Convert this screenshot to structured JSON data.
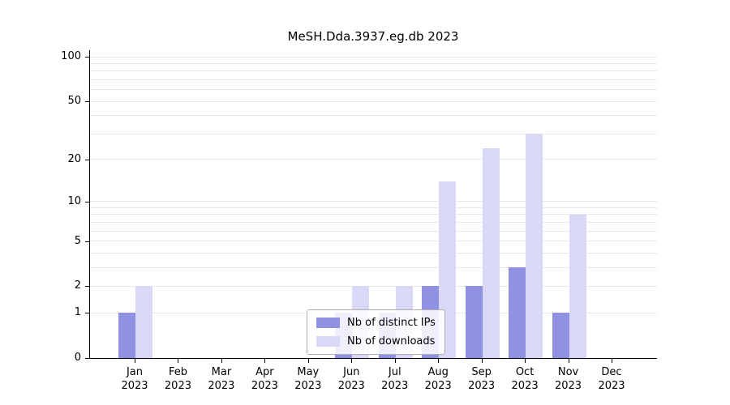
{
  "figure": {
    "title": "MeSH.Dda.3937.eg.db 2023"
  },
  "chart_data": {
    "type": "bar",
    "title": "MeSH.Dda.3937.eg.db 2023",
    "xlabel": "",
    "ylabel": "",
    "y_scale": "log1p",
    "ylim": [
      0,
      115
    ],
    "grid": true,
    "legend_position": "lower-center",
    "y_ticks": [
      0,
      1,
      2,
      5,
      10,
      20,
      50,
      100
    ],
    "gridline_values": [
      1,
      2,
      3,
      4,
      5,
      6,
      7,
      8,
      9,
      10,
      20,
      30,
      40,
      50,
      60,
      70,
      80,
      90,
      100
    ],
    "x_ticks": [
      {
        "month": "Jan",
        "year": "2023"
      },
      {
        "month": "Feb",
        "year": "2023"
      },
      {
        "month": "Mar",
        "year": "2023"
      },
      {
        "month": "Apr",
        "year": "2023"
      },
      {
        "month": "May",
        "year": "2023"
      },
      {
        "month": "Jun",
        "year": "2023"
      },
      {
        "month": "Jul",
        "year": "2023"
      },
      {
        "month": "Aug",
        "year": "2023"
      },
      {
        "month": "Sep",
        "year": "2023"
      },
      {
        "month": "Oct",
        "year": "2023"
      },
      {
        "month": "Nov",
        "year": "2023"
      },
      {
        "month": "Dec",
        "year": "2023"
      }
    ],
    "series": [
      {
        "name": "Nb of distinct IPs",
        "key": "distinct-ips",
        "color": "#9191e3",
        "values": [
          1,
          0,
          0,
          0,
          0,
          1,
          1,
          2,
          2,
          3,
          1,
          0
        ]
      },
      {
        "name": "Nb of downloads",
        "key": "downloads",
        "color": "#d9d9f7",
        "values": [
          2,
          0,
          0,
          0,
          0,
          2,
          2,
          14,
          24,
          30,
          8,
          0
        ]
      }
    ]
  }
}
